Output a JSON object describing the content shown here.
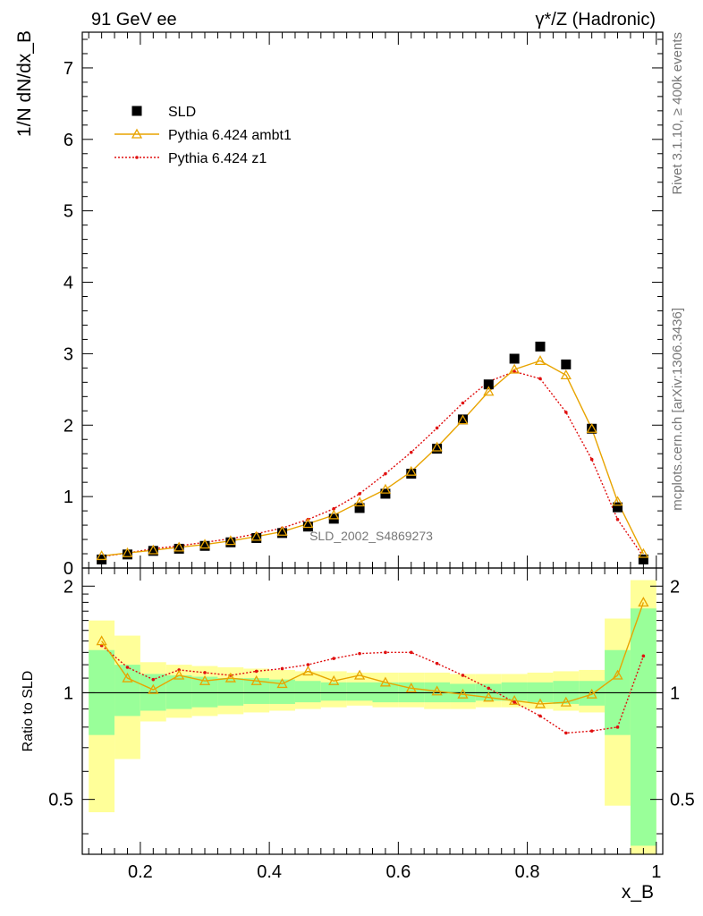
{
  "header": {
    "left": "91 GeV ee",
    "right": "γ*/Z (Hadronic)"
  },
  "side": {
    "rivet": "Rivet 3.1.10, ≥ 400k events",
    "mcplots": "mcplots.cern.ch [arXiv:1306.3436]"
  },
  "chart_data": {
    "type": "line",
    "analysis_label": "SLD_2002_S4869273",
    "xlabel": "x_B",
    "xlim": [
      0.11,
      1.01
    ],
    "x_ticks": [
      0.2,
      0.4,
      0.6,
      0.8,
      1
    ],
    "x_tick_labels": [
      "0.2",
      "0.4",
      "0.6",
      "0.8",
      "1"
    ],
    "main": {
      "ylabel": "1/N dN/dx_B",
      "ylim": [
        0,
        7.5
      ],
      "y_ticks": [
        0,
        1,
        2,
        3,
        4,
        5,
        6,
        7
      ],
      "y_tick_labels": [
        "0",
        "1",
        "2",
        "3",
        "4",
        "5",
        "6",
        "7"
      ]
    },
    "ratio": {
      "ylabel": "Ratio to SLD",
      "ylim": [
        0.35,
        2.25
      ],
      "y_ticks": [
        0.5,
        1,
        2
      ],
      "y_tick_labels": [
        "0.5",
        "1",
        "2"
      ]
    },
    "legend": {
      "position": "top-left",
      "entries": [
        {
          "name": "SLD",
          "style": "square",
          "color": "#000000"
        },
        {
          "name": "Pythia 6.424 ambt1",
          "style": "triangle-line",
          "color": "#e8a400"
        },
        {
          "name": "Pythia 6.424 z1",
          "style": "dotted",
          "color": "#e01010"
        }
      ]
    },
    "x": [
      0.14,
      0.18,
      0.22,
      0.26,
      0.3,
      0.34,
      0.38,
      0.42,
      0.46,
      0.5,
      0.54,
      0.58,
      0.62,
      0.66,
      0.7,
      0.74,
      0.78,
      0.82,
      0.86,
      0.9,
      0.94,
      0.98
    ],
    "series": [
      {
        "name": "SLD",
        "values": [
          0.12,
          0.19,
          0.24,
          0.27,
          0.31,
          0.36,
          0.42,
          0.49,
          0.58,
          0.69,
          0.84,
          1.04,
          1.32,
          1.67,
          2.08,
          2.57,
          2.93,
          3.1,
          2.85,
          1.95,
          0.85,
          0.12
        ]
      },
      {
        "name": "Pythia 6.424 ambt1",
        "values": [
          0.17,
          0.21,
          0.25,
          0.29,
          0.33,
          0.38,
          0.44,
          0.51,
          0.62,
          0.74,
          0.92,
          1.1,
          1.35,
          1.69,
          2.07,
          2.47,
          2.78,
          2.9,
          2.7,
          1.95,
          0.93,
          0.2
        ]
      },
      {
        "name": "Pythia 6.424 z1",
        "values": [
          0.16,
          0.21,
          0.27,
          0.31,
          0.36,
          0.41,
          0.48,
          0.56,
          0.68,
          0.83,
          1.04,
          1.32,
          1.62,
          1.96,
          2.31,
          2.61,
          2.75,
          2.65,
          2.18,
          1.52,
          0.68,
          0.16
        ]
      }
    ],
    "ratio_series": [
      {
        "name": "Pythia 6.424 ambt1",
        "values": [
          1.4,
          1.1,
          1.02,
          1.12,
          1.08,
          1.1,
          1.08,
          1.06,
          1.15,
          1.08,
          1.12,
          1.07,
          1.03,
          1.01,
          0.99,
          0.97,
          0.95,
          0.93,
          0.94,
          0.99,
          1.12,
          1.8
        ]
      },
      {
        "name": "Pythia 6.424 z1",
        "values": [
          1.36,
          1.18,
          1.09,
          1.16,
          1.14,
          1.12,
          1.15,
          1.17,
          1.2,
          1.25,
          1.29,
          1.3,
          1.3,
          1.21,
          1.12,
          1.03,
          0.94,
          0.86,
          0.77,
          0.78,
          0.8,
          1.27
        ]
      }
    ],
    "uncertainty_bands": {
      "x_edges": [
        0.12,
        0.16,
        0.2,
        0.24,
        0.28,
        0.32,
        0.36,
        0.4,
        0.44,
        0.48,
        0.52,
        0.56,
        0.6,
        0.64,
        0.68,
        0.72,
        0.76,
        0.8,
        0.84,
        0.88,
        0.92,
        0.96,
        1.0
      ],
      "inner_lo": [
        0.76,
        0.86,
        0.89,
        0.9,
        0.91,
        0.92,
        0.93,
        0.93,
        0.94,
        0.95,
        0.95,
        0.94,
        0.94,
        0.94,
        0.94,
        0.95,
        0.95,
        0.94,
        0.93,
        0.92,
        0.76,
        0.37
      ],
      "inner_hi": [
        1.32,
        1.2,
        1.13,
        1.12,
        1.11,
        1.1,
        1.1,
        1.09,
        1.08,
        1.07,
        1.07,
        1.07,
        1.07,
        1.07,
        1.06,
        1.06,
        1.07,
        1.07,
        1.08,
        1.08,
        1.32,
        1.73
      ],
      "outer_lo": [
        0.46,
        0.65,
        0.83,
        0.85,
        0.86,
        0.87,
        0.88,
        0.89,
        0.9,
        0.91,
        0.92,
        0.91,
        0.91,
        0.9,
        0.9,
        0.91,
        0.91,
        0.9,
        0.89,
        0.88,
        0.48,
        0.35
      ],
      "outer_hi": [
        1.6,
        1.45,
        1.22,
        1.2,
        1.19,
        1.18,
        1.17,
        1.16,
        1.15,
        1.15,
        1.14,
        1.14,
        1.14,
        1.14,
        1.13,
        1.13,
        1.13,
        1.14,
        1.15,
        1.16,
        1.62,
        2.08
      ]
    }
  }
}
